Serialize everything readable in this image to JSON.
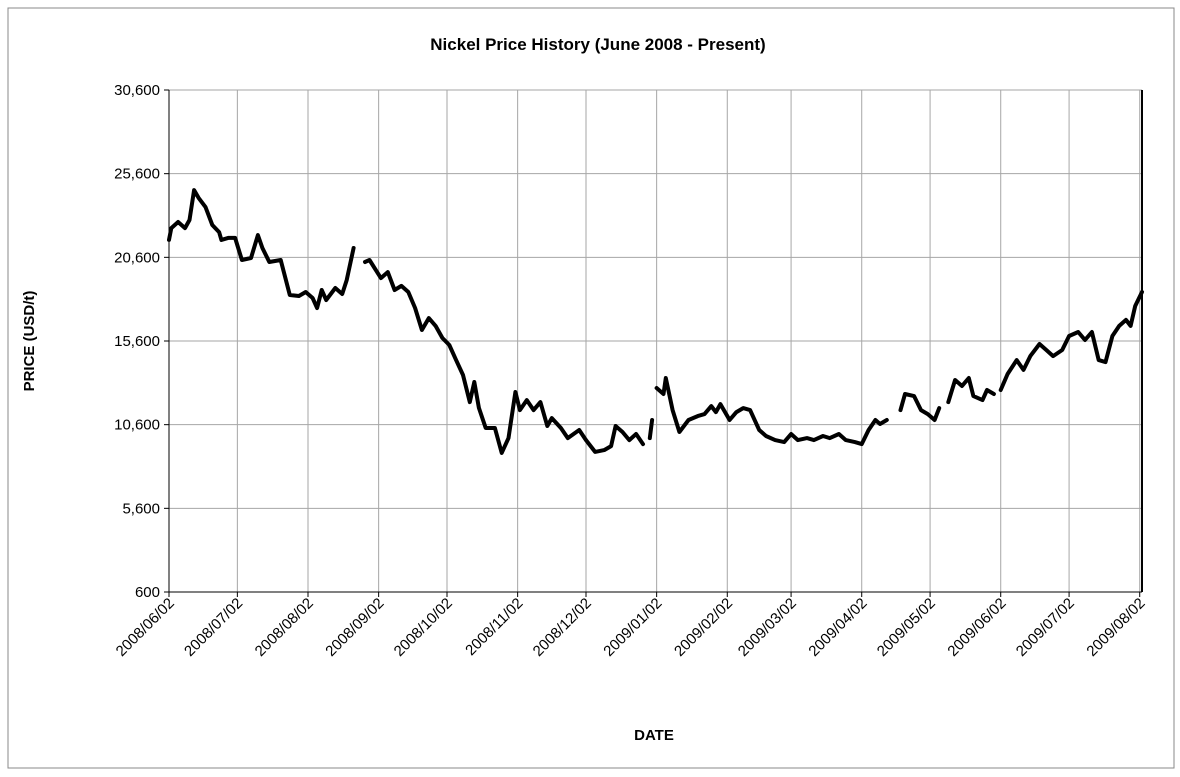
{
  "chart_data": {
    "type": "line",
    "title": "Nickel Price History (June 2008 - Present)",
    "x_label": "DATE",
    "y_label": "PRICE (USD/t)",
    "x": [
      "2008/06/02",
      "2008/06/03",
      "2008/06/06",
      "2008/06/09",
      "2008/06/11",
      "2008/06/13",
      "2008/06/15",
      "2008/06/18",
      "2008/06/21",
      "2008/06/24",
      "2008/06/25",
      "2008/06/28",
      "2008/07/01",
      "2008/07/04",
      "2008/07/08",
      "2008/07/11",
      "2008/07/13",
      "2008/07/16",
      "2008/07/21",
      "2008/07/25",
      "2008/07/29",
      "2008/08/01",
      "2008/08/04",
      "2008/08/06",
      "2008/08/08",
      "2008/08/10",
      "2008/08/14",
      "2008/08/17",
      "2008/08/19",
      "2008/08/22",
      "2008/08/25",
      "2008/08/27",
      "2008/08/29",
      "2008/09/03",
      "2008/09/06",
      "2008/09/09",
      "2008/09/12",
      "2008/09/15",
      "2008/09/18",
      "2008/09/21",
      "2008/09/24",
      "2008/09/27",
      "2008/09/30",
      "2008/10/03",
      "2008/10/06",
      "2008/10/09",
      "2008/10/12",
      "2008/10/14",
      "2008/10/16",
      "2008/10/19",
      "2008/10/23",
      "2008/10/26",
      "2008/10/29",
      "2008/11/01",
      "2008/11/03",
      "2008/11/06",
      "2008/11/09",
      "2008/11/12",
      "2008/11/15",
      "2008/11/17",
      "2008/11/21",
      "2008/11/24",
      "2008/11/29",
      "2008/12/02",
      "2008/12/06",
      "2008/12/10",
      "2008/12/13",
      "2008/12/15",
      "2008/12/18",
      "2008/12/21",
      "2008/12/24",
      "2008/12/27",
      "2008/12/29",
      "2008/12/30",
      "2008/12/31",
      "2009/01/01",
      "2009/01/02",
      "2009/01/05",
      "2009/01/06",
      "2009/01/09",
      "2009/01/12",
      "2009/01/16",
      "2009/01/20",
      "2009/01/23",
      "2009/01/26",
      "2009/01/28",
      "2009/01/30",
      "2009/02/03",
      "2009/02/06",
      "2009/02/09",
      "2009/02/12",
      "2009/02/16",
      "2009/02/19",
      "2009/02/23",
      "2009/02/27",
      "2009/03/02",
      "2009/03/05",
      "2009/03/09",
      "2009/03/12",
      "2009/03/16",
      "2009/03/19",
      "2009/03/23",
      "2009/03/26",
      "2009/03/30",
      "2009/04/02",
      "2009/04/05",
      "2009/04/08",
      "2009/04/10",
      "2009/04/13",
      "2009/04/16",
      "2009/04/19",
      "2009/04/21",
      "2009/04/25",
      "2009/04/28",
      "2009/05/01",
      "2009/05/04",
      "2009/05/06",
      "2009/05/08",
      "2009/05/10",
      "2009/05/13",
      "2009/05/16",
      "2009/05/19",
      "2009/05/21",
      "2009/05/25",
      "2009/05/27",
      "2009/05/30",
      "2009/06/01",
      "2009/06/02",
      "2009/06/05",
      "2009/06/09",
      "2009/06/12",
      "2009/06/15",
      "2009/06/19",
      "2009/06/22",
      "2009/06/25",
      "2009/06/29",
      "2009/07/02",
      "2009/07/06",
      "2009/07/09",
      "2009/07/12",
      "2009/07/15",
      "2009/07/18",
      "2009/07/21",
      "2009/07/24",
      "2009/07/27",
      "2009/07/29",
      "2009/07/31",
      "2009/08/03"
    ],
    "series": [
      {
        "name": "Nickel",
        "color": "#000000",
        "values": [
          21640,
          22350,
          22710,
          22350,
          22830,
          24620,
          24150,
          23600,
          22530,
          22110,
          21640,
          21760,
          21760,
          20440,
          20560,
          21930,
          21160,
          20320,
          20440,
          18350,
          18290,
          18530,
          18170,
          17570,
          18650,
          18050,
          18770,
          18410,
          19240,
          21160,
          null,
          20320,
          20440,
          19360,
          19720,
          18650,
          18890,
          18530,
          17570,
          16260,
          16970,
          16500,
          15780,
          15360,
          14460,
          13570,
          11950,
          13150,
          11600,
          10400,
          10400,
          8910,
          9800,
          12550,
          11470,
          12070,
          11470,
          11950,
          10520,
          10990,
          10400,
          9800,
          10280,
          9680,
          8970,
          9080,
          9320,
          10520,
          10160,
          9680,
          10040,
          9440,
          null,
          9800,
          10880,
          null,
          12790,
          12430,
          13390,
          11470,
          10160,
          10880,
          11110,
          11230,
          11710,
          11350,
          11830,
          10880,
          11350,
          11590,
          11470,
          10280,
          9920,
          9680,
          9560,
          10040,
          9680,
          9800,
          9680,
          9920,
          9800,
          10040,
          9680,
          9560,
          9440,
          10280,
          10880,
          10640,
          10880,
          null,
          11470,
          12430,
          12310,
          11470,
          11230,
          10880,
          11590,
          null,
          11950,
          13270,
          12910,
          13390,
          12310,
          12070,
          12670,
          12430,
          null,
          12670,
          13630,
          14460,
          13870,
          14700,
          15420,
          15060,
          14700,
          15060,
          15900,
          16140,
          15660,
          16140,
          14460,
          14340,
          15900,
          16500,
          16860,
          16500,
          17690,
          18530
        ]
      }
    ],
    "xlim": [
      "2008/06/02",
      "2009/08/03"
    ],
    "xticks": [
      "2008/06/02",
      "2008/07/02",
      "2008/08/02",
      "2008/09/02",
      "2008/10/02",
      "2008/11/02",
      "2008/12/02",
      "2009/01/02",
      "2009/02/02",
      "2009/03/02",
      "2009/04/02",
      "2009/05/02",
      "2009/06/02",
      "2009/07/02",
      "2009/08/02"
    ],
    "ylim": [
      600,
      30600
    ],
    "yticks": [
      {
        "value": 600,
        "label": "600"
      },
      {
        "value": 5600,
        "label": "5,600"
      },
      {
        "value": 10600,
        "label": "10,600"
      },
      {
        "value": 15600,
        "label": "15,600"
      },
      {
        "value": 20600,
        "label": "20,600"
      },
      {
        "value": 25600,
        "label": "25,600"
      },
      {
        "value": 30600,
        "label": "30,600"
      }
    ],
    "grid": true
  }
}
